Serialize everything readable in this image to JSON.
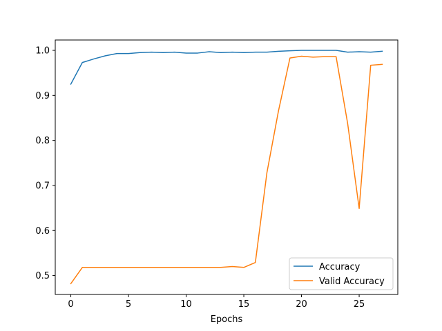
{
  "chart_data": {
    "type": "line",
    "title": "",
    "xlabel": "Epochs",
    "ylabel": "",
    "xlim": [
      -1.35,
      28.35
    ],
    "ylim": [
      0.458,
      1.023
    ],
    "x_ticks": [
      0,
      5,
      10,
      15,
      20,
      25
    ],
    "y_ticks": [
      0.5,
      0.6,
      0.7,
      0.8,
      0.9,
      1.0
    ],
    "x_tick_labels": [
      "0",
      "5",
      "10",
      "15",
      "20",
      "25"
    ],
    "y_tick_labels": [
      "0.5",
      "0.6",
      "0.7",
      "0.8",
      "0.9",
      "1.0"
    ],
    "grid": false,
    "legend_position": "lower-right",
    "x": [
      0,
      1,
      2,
      3,
      4,
      5,
      6,
      7,
      8,
      9,
      10,
      11,
      12,
      13,
      14,
      15,
      16,
      17,
      18,
      19,
      20,
      21,
      22,
      23,
      24,
      25,
      26,
      27
    ],
    "series": [
      {
        "name": "Accuracy",
        "color": "#1f77b4",
        "values": [
          0.925,
          0.973,
          0.981,
          0.988,
          0.993,
          0.993,
          0.995,
          0.996,
          0.995,
          0.996,
          0.994,
          0.994,
          0.997,
          0.995,
          0.996,
          0.995,
          0.996,
          0.996,
          0.998,
          0.999,
          1.0,
          1.0,
          1.0,
          1.0,
          0.996,
          0.997,
          0.996,
          0.998
        ]
      },
      {
        "name": "Valid Accuracy",
        "color": "#ff7f0e",
        "values": [
          0.482,
          0.518,
          0.518,
          0.518,
          0.518,
          0.518,
          0.518,
          0.518,
          0.518,
          0.518,
          0.518,
          0.518,
          0.518,
          0.518,
          0.52,
          0.518,
          0.529,
          0.728,
          0.865,
          0.983,
          0.987,
          0.985,
          0.986,
          0.986,
          0.838,
          0.649,
          0.967,
          0.969
        ]
      }
    ]
  }
}
